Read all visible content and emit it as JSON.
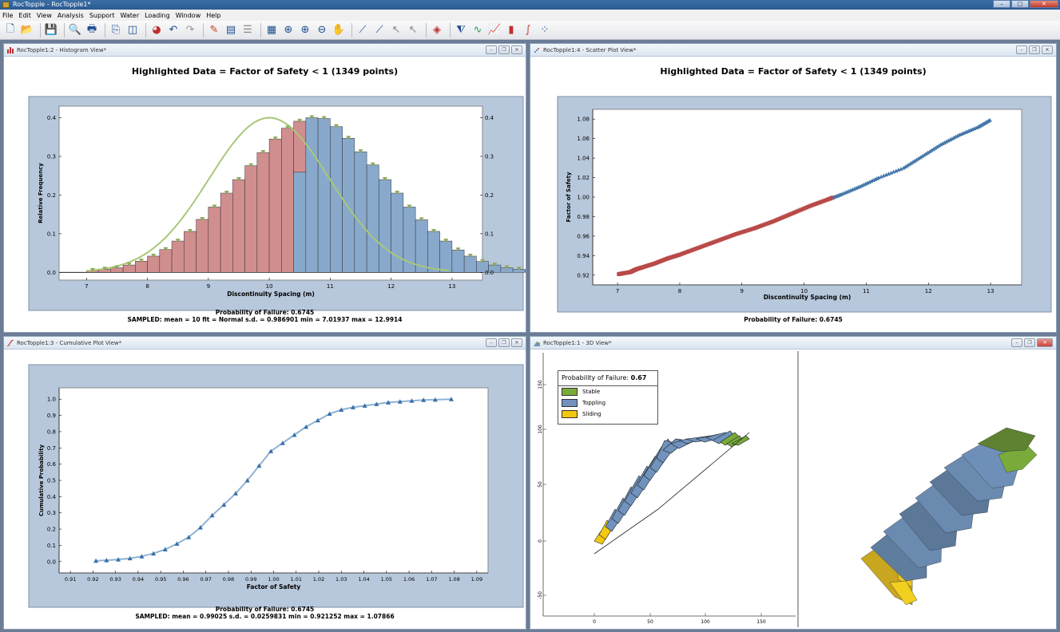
{
  "app": {
    "title": "RocTopple - RocTopple1*",
    "menu": [
      "File",
      "Edit",
      "View",
      "Analysis",
      "Support",
      "Water",
      "Loading",
      "Window",
      "Help"
    ],
    "toolbar_icons": [
      "new-icon",
      "open-icon",
      "save-icon",
      "print-preview-icon",
      "print-icon",
      "copy-icon",
      "columns-icon",
      "color-icon",
      "undo-icon",
      "redo-icon",
      "wrench-icon",
      "chart-export-icon",
      "properties-icon",
      "calculator-icon",
      "zoom-all-icon",
      "zoom-in-icon",
      "zoom-out-icon",
      "pan-icon",
      "edit-line-icon",
      "add-line-icon",
      "select-icon",
      "deselect-icon",
      "eraser-icon",
      "filter-icon",
      "wave-icon",
      "line-chart-icon",
      "bar-chart-icon",
      "cumulative-icon",
      "scatter-icon"
    ]
  },
  "windows": {
    "histogram": {
      "title": "RocTopple1:2 - Histogram View*",
      "heading": "Highlighted Data = Factor of Safety < 1 (1349 points)",
      "footer1": "Probability of Failure: 0.6745",
      "footer2": "SAMPLED: mean = 10 fit = Normal s.d. = 0.986901 min = 7.01937 max = 12.9914"
    },
    "scatter": {
      "title": "RocTopple1:4 - Scatter Plot View*",
      "heading": "Highlighted Data = Factor of Safety < 1 (1349 points)",
      "footer1": "Probability of Failure: 0.6745"
    },
    "cumulative": {
      "title": "RocTopple1:3 - Cumulative Plot View*",
      "footer1": "Probability of Failure: 0.6745",
      "footer2": "SAMPLED: mean = 0.99025 s.d. = 0.0259831 min = 0.921252 max = 1.07866"
    },
    "view3d": {
      "title": "RocTopple1:1 - 3D View*",
      "legend_title": "Probability of Failure:",
      "legend_value": "0.67",
      "legend": [
        {
          "label": "Stable",
          "color": "#7aab3a"
        },
        {
          "label": "Toppling",
          "color": "#7092bd"
        },
        {
          "label": "Sliding",
          "color": "#f2c811"
        }
      ],
      "y_ticks": [
        "150",
        "100",
        "50",
        "0",
        "-50"
      ],
      "x_ticks": [
        "0",
        "50",
        "100",
        "150"
      ]
    }
  },
  "chart_data": [
    {
      "type": "bar",
      "title": "Highlighted Data = Factor of Safety < 1 (1349 points)",
      "xlabel": "Discontinuity Spacing (m)",
      "ylabel": "Relative Frequency",
      "xlim": [
        6.55,
        13.5
      ],
      "ylim": [
        -0.02,
        0.43
      ],
      "x_ticks": [
        7,
        8,
        9,
        10,
        11,
        12,
        13
      ],
      "y_ticks": [
        0.0,
        0.1,
        0.2,
        0.3,
        0.4
      ],
      "y_tick_labels": [
        "0.0",
        "0.1",
        "0.2",
        "0.3",
        "0.4"
      ],
      "bin_start": 7.0,
      "bin_width": 0.2,
      "values": [
        0.005,
        0.008,
        0.012,
        0.019,
        0.029,
        0.042,
        0.059,
        0.081,
        0.106,
        0.137,
        0.169,
        0.205,
        0.24,
        0.276,
        0.31,
        0.345,
        0.373,
        0.391,
        0.4,
        0.398,
        0.377,
        0.347,
        0.312,
        0.278,
        0.24,
        0.205,
        0.169,
        0.136,
        0.106,
        0.081,
        0.058,
        0.042,
        0.028,
        0.019,
        0.012,
        0.008,
        0.005,
        0.003,
        0.002,
        0.001
      ],
      "highlighted_part_of_split_bin": 0.259,
      "highlight_limit_x": 10.5,
      "fit_name": "Normal",
      "colors": {
        "highlighted": "#d18e8e",
        "other": "#88a9cc",
        "fit_line": "#a8c878",
        "fit_marker": "#8fa95a"
      }
    },
    {
      "type": "scatter",
      "title": "Highlighted Data = Factor of Safety < 1 (1349 points)",
      "xlabel": "Discontinuity Spacing (m)",
      "ylabel": "Factor of Safety",
      "xlim": [
        6.6,
        13.5
      ],
      "ylim": [
        0.91,
        1.09
      ],
      "x_ticks": [
        7,
        8,
        9,
        10,
        11,
        12,
        13
      ],
      "y_ticks": [
        0.92,
        0.94,
        0.96,
        0.98,
        1.0,
        1.02,
        1.04,
        1.06,
        1.08
      ],
      "y_tick_labels": [
        "0.92",
        "0.94",
        "0.96",
        "0.98",
        "1.00",
        "1.02",
        "1.04",
        "1.06",
        "1.08"
      ],
      "x": [
        7.02,
        7.1,
        7.2,
        7.3,
        7.4,
        7.6,
        7.8,
        8.0,
        8.3,
        8.6,
        8.9,
        9.2,
        9.5,
        9.8,
        10.1,
        10.4,
        10.6,
        10.9,
        11.2,
        11.6,
        11.9,
        12.2,
        12.5,
        12.8,
        12.99
      ],
      "y": [
        0.921,
        0.922,
        0.923,
        0.926,
        0.928,
        0.932,
        0.937,
        0.941,
        0.948,
        0.955,
        0.962,
        0.968,
        0.975,
        0.983,
        0.991,
        0.998,
        1.003,
        1.011,
        1.02,
        1.03,
        1.042,
        1.054,
        1.064,
        1.072,
        1.079
      ],
      "colors": {
        "highlighted": "#b84a48",
        "other": "#4477aa"
      }
    },
    {
      "type": "line",
      "xlabel": "Factor of Safety",
      "ylabel": "Cumulative Probability",
      "xlim": [
        0.905,
        1.095
      ],
      "ylim": [
        -0.07,
        1.07
      ],
      "x_ticks": [
        0.91,
        0.92,
        0.93,
        0.94,
        0.95,
        0.96,
        0.97,
        0.98,
        0.99,
        1.0,
        1.01,
        1.02,
        1.03,
        1.04,
        1.05,
        1.06,
        1.07,
        1.08,
        1.09
      ],
      "x_tick_labels": [
        "0.91",
        "0.92",
        "0.93",
        "0.94",
        "0.95",
        "0.96",
        "0.97",
        "0.98",
        "0.99",
        "1.00",
        "1.01",
        "1.02",
        "1.03",
        "1.04",
        "1.05",
        "1.06",
        "1.07",
        "1.08",
        "1.09"
      ],
      "y_ticks": [
        0.0,
        0.1,
        0.2,
        0.3,
        0.4,
        0.5,
        0.6,
        0.7,
        0.8,
        0.9,
        1.0
      ],
      "y_tick_labels": [
        "0.0",
        "0.1",
        "0.2",
        "0.3",
        "0.4",
        "0.5",
        "0.6",
        "0.7",
        "0.8",
        "0.9",
        "1.0"
      ],
      "x": [
        0.9213,
        0.926,
        0.9312,
        0.9364,
        0.9416,
        0.9468,
        0.952,
        0.9572,
        0.9624,
        0.9676,
        0.9728,
        0.978,
        0.9832,
        0.9884,
        0.9936,
        0.9988,
        1.004,
        1.0092,
        1.0144,
        1.0196,
        1.0248,
        1.03,
        1.0352,
        1.0404,
        1.0456,
        1.0508,
        1.056,
        1.0612,
        1.0664,
        1.0716,
        1.0787
      ],
      "y": [
        0.005,
        0.008,
        0.013,
        0.02,
        0.032,
        0.05,
        0.075,
        0.11,
        0.15,
        0.21,
        0.285,
        0.35,
        0.42,
        0.5,
        0.59,
        0.68,
        0.73,
        0.78,
        0.83,
        0.87,
        0.91,
        0.935,
        0.95,
        0.96,
        0.97,
        0.98,
        0.985,
        0.99,
        0.995,
        0.997,
        1.0
      ],
      "colors": {
        "line": "#8fb3d3",
        "marker": "#3a6fa8"
      }
    }
  ]
}
